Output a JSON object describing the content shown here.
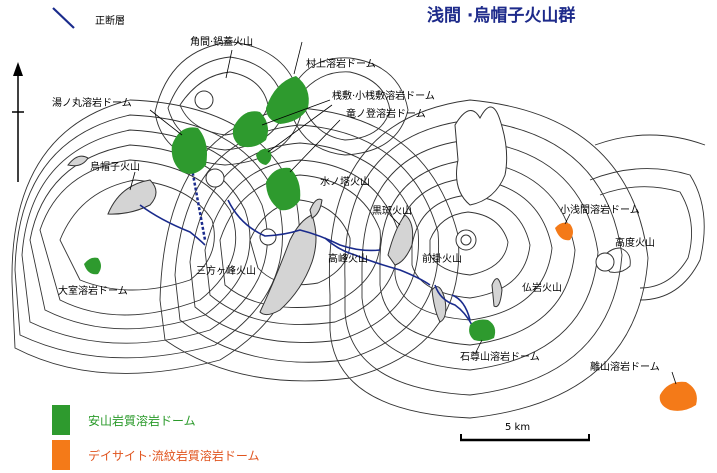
{
  "title": "浅間 ·烏帽子火山群",
  "fault_legend": {
    "label": "正断層",
    "color": "#1a2b8c"
  },
  "north_arrow": {
    "symbol": "north-arrow"
  },
  "colors": {
    "andesite": "#2e9a2e",
    "dacite": "#f47a18",
    "river": "#1a2b8c",
    "lava_flow": "#d4d4d4"
  },
  "features": {
    "kakuma": "角間·鍋蓋火山",
    "murakami": "村上溶岩ドーム",
    "yunomaru": "湯ノ丸溶岩ドーム",
    "sankazu": "桟敷·小桟敷溶岩ドーム",
    "takinotou": "竜ノ登溶岩ドーム",
    "eboshi": "烏帽子火山",
    "mizunoto": "水ノ塔火山",
    "kurofu": "黒斑火山",
    "koasama": "小浅間溶岩ドーム",
    "takamine": "高峰火山",
    "sanpougamine": "三方ヶ峰火山",
    "komuro": "大室溶岩ドーム",
    "maekake": "前掛火山",
    "kodo": "高度火山",
    "butsuiwa": "仏岩火山",
    "ishison": "石尊山溶岩ドーム",
    "hanare": "離山溶岩ドーム"
  },
  "legend": {
    "andesite_label": "安山岩質溶岩ドーム",
    "dacite_label": "デイサイト·流紋岩質溶岩ドーム"
  },
  "scale_bar": {
    "label": "5 km"
  }
}
